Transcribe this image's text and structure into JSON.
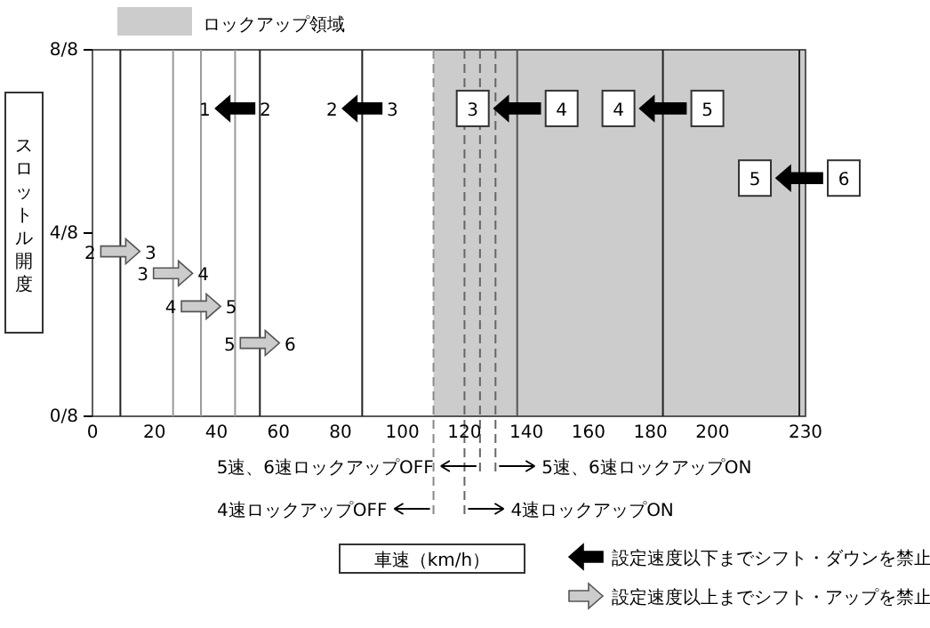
{
  "chart_data": {
    "type": "line",
    "ylabel": "スロットル開度",
    "xlim": [
      0,
      230
    ],
    "xticks": [
      0,
      20,
      40,
      60,
      80,
      100,
      120,
      140,
      160,
      180,
      200,
      230
    ],
    "ylim": [
      0,
      1
    ],
    "yticks": [
      {
        "value": 0,
        "label": "0/8"
      },
      {
        "value": 0.5,
        "label": "4/8"
      },
      {
        "value": 1,
        "label": "8/8"
      }
    ],
    "grid": false,
    "legend": "top left",
    "bands": [
      {
        "axis": "x",
        "from": 110,
        "to": 230,
        "label": "ロックアップ領域",
        "color": "#cccccc"
      }
    ],
    "ref_lines": [
      {
        "axis": "x",
        "value": 9,
        "color": "#222222"
      },
      {
        "axis": "x",
        "value": 26,
        "color": "#999999"
      },
      {
        "axis": "x",
        "value": 35,
        "color": "#999999"
      },
      {
        "axis": "x",
        "value": 46,
        "color": "#999999"
      },
      {
        "axis": "x",
        "value": 54,
        "color": "#222222"
      },
      {
        "axis": "x",
        "value": 87,
        "color": "#222222"
      },
      {
        "axis": "x",
        "value": 137,
        "color": "#555555"
      },
      {
        "axis": "x",
        "value": 184,
        "color": "#222222"
      },
      {
        "axis": "x",
        "value": 228,
        "color": "#222222"
      },
      {
        "axis": "x",
        "value": 125,
        "color": "#666666",
        "line_style": "dashed",
        "label": "5速、6速ロックアップOFF"
      },
      {
        "axis": "x",
        "value": 130,
        "color": "#666666",
        "line_style": "dashed",
        "label": "5速、6速ロックアップON"
      },
      {
        "axis": "x",
        "value": 110,
        "color": "#888888",
        "line_style": "dashed",
        "label": "4速ロックアップOFF"
      },
      {
        "axis": "x",
        "value": 120,
        "color": "#666666",
        "line_style": "dashed",
        "label": "4速ロックアップON"
      }
    ],
    "annotations": [
      "設定速度以下までシフト・ダウンを禁止",
      "設定速度以上までシフト・アップを禁止",
      "車速（km/h）",
      {
        "text": "1",
        "x": 46,
        "y": 0.84
      },
      {
        "text": "2",
        "x": 46,
        "y": 0.84
      },
      {
        "text": "2",
        "x": 87,
        "y": 0.84
      },
      {
        "text": "3",
        "x": 87,
        "y": 0.84
      },
      {
        "text": "3",
        "x": 137,
        "y": 0.84
      },
      {
        "text": "4",
        "x": 137,
        "y": 0.84
      },
      {
        "text": "4",
        "x": 184,
        "y": 0.84
      },
      {
        "text": "5",
        "x": 184,
        "y": 0.84
      },
      {
        "text": "5",
        "x": 228,
        "y": 0.65
      },
      {
        "text": "6",
        "x": 228,
        "y": 0.65
      },
      {
        "text": "2",
        "x": 9,
        "y": 0.45
      },
      {
        "text": "3",
        "x": 9,
        "y": 0.45
      },
      {
        "text": "3",
        "x": 26,
        "y": 0.39
      },
      {
        "text": "4",
        "x": 26,
        "y": 0.39
      },
      {
        "text": "4",
        "x": 35,
        "y": 0.3
      },
      {
        "text": "5",
        "x": 35,
        "y": 0.3
      },
      {
        "text": "5",
        "x": 54,
        "y": 0.2
      },
      {
        "text": "6",
        "x": 54,
        "y": 0.2
      }
    ]
  }
}
